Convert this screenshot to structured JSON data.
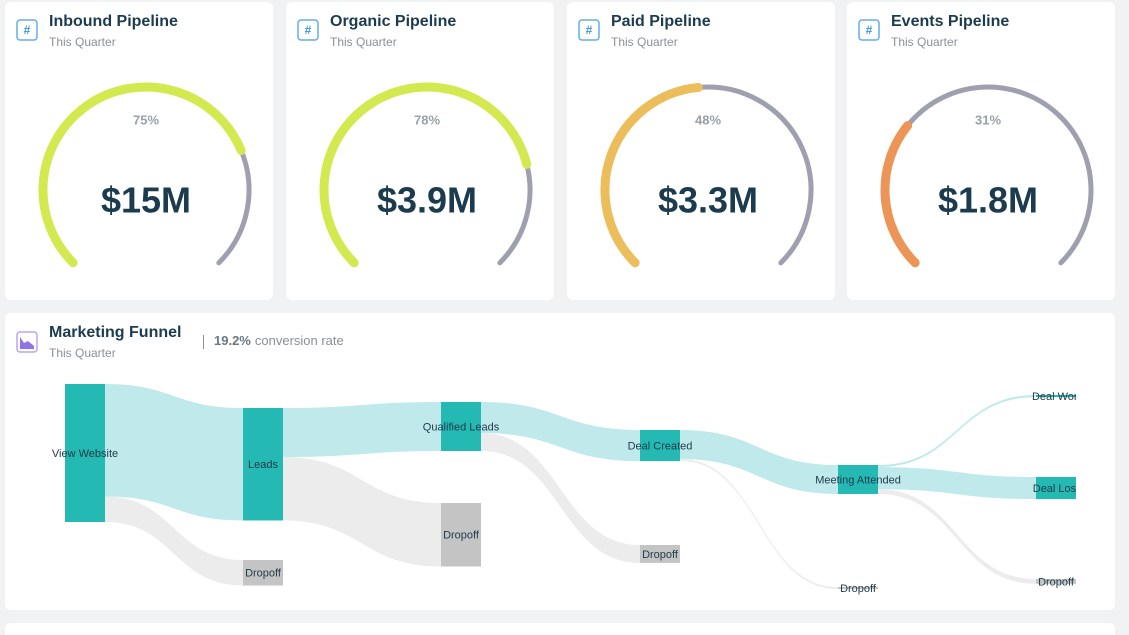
{
  "gauges": [
    {
      "title": "Inbound Pipeline",
      "subtitle": "This Quarter",
      "percent": 75,
      "percent_label": "75%",
      "value_label": "$15M",
      "color": "#d4e94f"
    },
    {
      "title": "Organic Pipeline",
      "subtitle": "This Quarter",
      "percent": 78,
      "percent_label": "78%",
      "value_label": "$3.9M",
      "color": "#d4e94f"
    },
    {
      "title": "Paid Pipeline",
      "subtitle": "This Quarter",
      "percent": 48,
      "percent_label": "48%",
      "value_label": "$3.3M",
      "color": "#ecbd5b"
    },
    {
      "title": "Events Pipeline",
      "subtitle": "This Quarter",
      "percent": 31,
      "percent_label": "31%",
      "value_label": "$1.8M",
      "color": "#ec9557"
    }
  ],
  "funnel": {
    "title": "Marketing Funnel",
    "subtitle": "This Quarter",
    "conversion_rate": "19.2%",
    "conversion_text": "conversion rate",
    "nodes": [
      {
        "label": "View Website",
        "color": "#25b9b3"
      },
      {
        "label": "Leads",
        "color": "#25b9b3"
      },
      {
        "label": "Dropoff",
        "color": "#c4c4c4"
      },
      {
        "label": "Qualified Leads",
        "color": "#25b9b3"
      },
      {
        "label": "Dropoff",
        "color": "#c4c4c4"
      },
      {
        "label": "Deal Created",
        "color": "#25b9b3"
      },
      {
        "label": "Dropoff",
        "color": "#c4c4c4"
      },
      {
        "label": "Meeting Attended",
        "color": "#25b9b3"
      },
      {
        "label": "Dropoff",
        "color": "#c4c4c4"
      },
      {
        "label": "Deal Won",
        "color": "#25b9b3"
      },
      {
        "label": "Deal Lost",
        "color": "#25b9b3"
      },
      {
        "label": "Dropoff",
        "color": "#c4c4c4"
      }
    ],
    "links": [
      {
        "source": 0,
        "target": 1,
        "value": 815,
        "color": "#bfe9ea"
      },
      {
        "source": 0,
        "target": 2,
        "value": 185,
        "color": "#ececec"
      },
      {
        "source": 1,
        "target": 3,
        "value": 355,
        "color": "#bfe9ea"
      },
      {
        "source": 1,
        "target": 4,
        "value": 460,
        "color": "#ececec"
      },
      {
        "source": 3,
        "target": 5,
        "value": 225,
        "color": "#bfe9ea"
      },
      {
        "source": 3,
        "target": 6,
        "value": 130,
        "color": "#ececec"
      },
      {
        "source": 5,
        "target": 7,
        "value": 210,
        "color": "#bfe9ea"
      },
      {
        "source": 5,
        "target": 8,
        "value": 15,
        "color": "#ececec"
      },
      {
        "source": 7,
        "target": 9,
        "value": 15,
        "color": "#bfe9ea"
      },
      {
        "source": 7,
        "target": 10,
        "value": 160,
        "color": "#bfe9ea"
      },
      {
        "source": 7,
        "target": 11,
        "value": 35,
        "color": "#ececec"
      }
    ]
  }
}
